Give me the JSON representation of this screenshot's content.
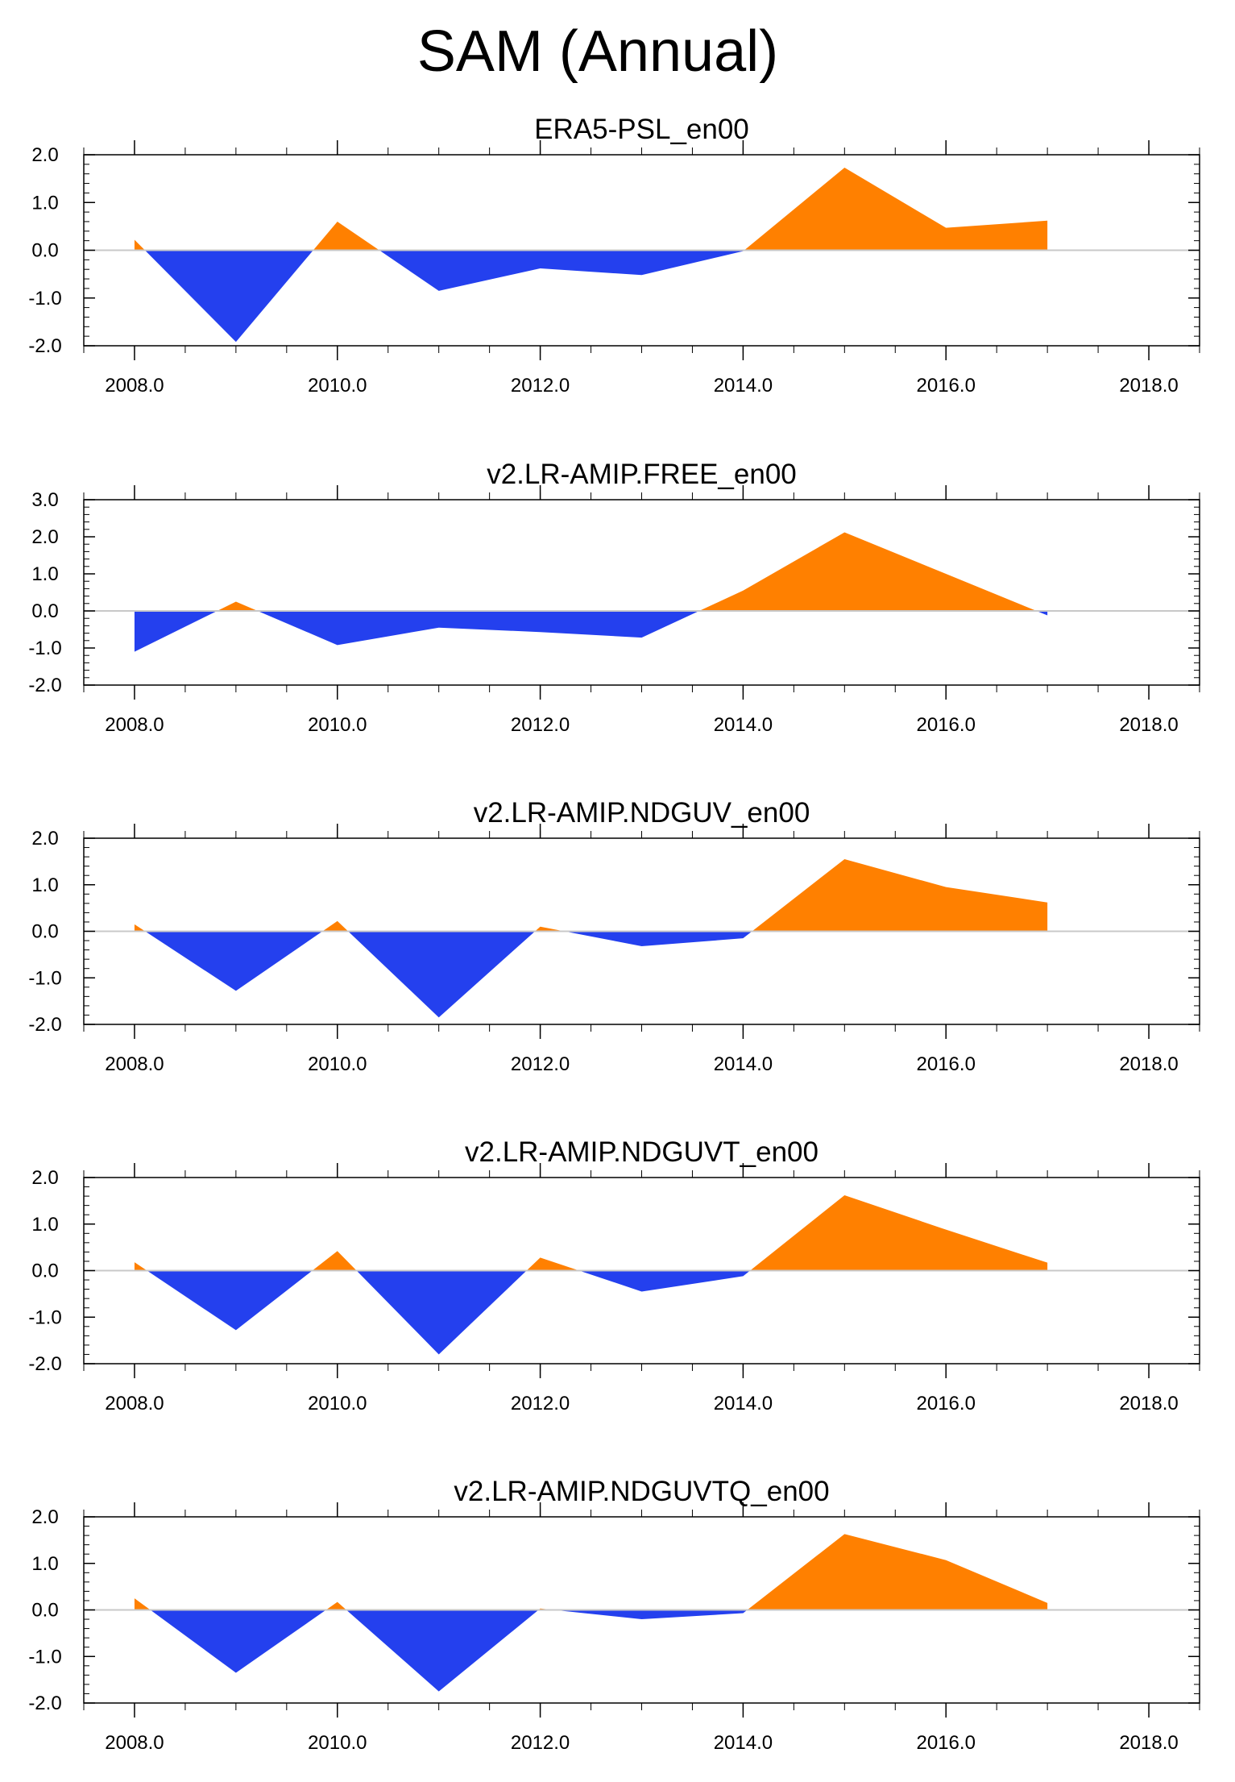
{
  "figure_title": "SAM (Annual)",
  "colors": {
    "positive": "#ff8000",
    "negative": "#2440ee",
    "zero_line": "#c8c8c8",
    "axis": "#000000"
  },
  "chart_data": [
    {
      "type": "area",
      "title": "ERA5-PSL_en00",
      "x": [
        2008,
        2009,
        2010,
        2011,
        2012,
        2013,
        2014,
        2015,
        2016,
        2017
      ],
      "values": [
        0.22,
        -1.92,
        0.6,
        -0.85,
        -0.38,
        -0.52,
        -0.02,
        1.73,
        0.47,
        0.62
      ],
      "xlim": [
        2007.5,
        2018.5
      ],
      "ylim": [
        -2.0,
        2.0
      ],
      "yticks": [
        -2.0,
        -1.0,
        0.0,
        1.0,
        2.0
      ],
      "ytick_labels": [
        "-2.0",
        "-1.0",
        "0.0",
        "1.0",
        "2.0"
      ],
      "xticks": [
        2008,
        2010,
        2012,
        2014,
        2016,
        2018
      ],
      "xtick_labels": [
        "2008.0",
        "2010.0",
        "2012.0",
        "2014.0",
        "2016.0",
        "2018.0"
      ]
    },
    {
      "type": "area",
      "title": "v2.LR-AMIP.FREE_en00",
      "x": [
        2008,
        2009,
        2010,
        2011,
        2012,
        2013,
        2014,
        2015,
        2016,
        2017
      ],
      "values": [
        -1.1,
        0.25,
        -0.92,
        -0.45,
        -0.57,
        -0.72,
        0.55,
        2.12,
        1.0,
        -0.12
      ],
      "xlim": [
        2007.5,
        2018.5
      ],
      "ylim": [
        -2.0,
        3.0
      ],
      "yticks": [
        -2.0,
        -1.0,
        0.0,
        1.0,
        2.0,
        3.0
      ],
      "ytick_labels": [
        "-2.0",
        "-1.0",
        "0.0",
        "1.0",
        "2.0",
        "3.0"
      ],
      "xticks": [
        2008,
        2010,
        2012,
        2014,
        2016,
        2018
      ],
      "xtick_labels": [
        "2008.0",
        "2010.0",
        "2012.0",
        "2014.0",
        "2016.0",
        "2018.0"
      ]
    },
    {
      "type": "area",
      "title": "v2.LR-AMIP.NDGUV_en00",
      "x": [
        2008,
        2009,
        2010,
        2011,
        2012,
        2013,
        2014,
        2015,
        2016,
        2017
      ],
      "values": [
        0.15,
        -1.28,
        0.22,
        -1.85,
        0.1,
        -0.32,
        -0.15,
        1.55,
        0.95,
        0.62
      ],
      "xlim": [
        2007.5,
        2018.5
      ],
      "ylim": [
        -2.0,
        2.0
      ],
      "yticks": [
        -2.0,
        -1.0,
        0.0,
        1.0,
        2.0
      ],
      "ytick_labels": [
        "-2.0",
        "-1.0",
        "0.0",
        "1.0",
        "2.0"
      ],
      "xticks": [
        2008,
        2010,
        2012,
        2014,
        2016,
        2018
      ],
      "xtick_labels": [
        "2008.0",
        "2010.0",
        "2012.0",
        "2014.0",
        "2016.0",
        "2018.0"
      ]
    },
    {
      "type": "area",
      "title": "v2.LR-AMIP.NDGUVT_en00",
      "x": [
        2008,
        2009,
        2010,
        2011,
        2012,
        2013,
        2014,
        2015,
        2016,
        2017
      ],
      "values": [
        0.18,
        -1.28,
        0.42,
        -1.8,
        0.28,
        -0.45,
        -0.12,
        1.62,
        0.88,
        0.17
      ],
      "xlim": [
        2007.5,
        2018.5
      ],
      "ylim": [
        -2.0,
        2.0
      ],
      "yticks": [
        -2.0,
        -1.0,
        0.0,
        1.0,
        2.0
      ],
      "ytick_labels": [
        "-2.0",
        "-1.0",
        "0.0",
        "1.0",
        "2.0"
      ],
      "xticks": [
        2008,
        2010,
        2012,
        2014,
        2016,
        2018
      ],
      "xtick_labels": [
        "2008.0",
        "2010.0",
        "2012.0",
        "2014.0",
        "2016.0",
        "2018.0"
      ]
    },
    {
      "type": "area",
      "title": "v2.LR-AMIP.NDGUVTQ_en00",
      "x": [
        2008,
        2009,
        2010,
        2011,
        2012,
        2013,
        2014,
        2015,
        2016,
        2017
      ],
      "values": [
        0.25,
        -1.35,
        0.17,
        -1.75,
        0.03,
        -0.2,
        -0.07,
        1.63,
        1.07,
        0.15
      ],
      "xlim": [
        2007.5,
        2018.5
      ],
      "ylim": [
        -2.0,
        2.0
      ],
      "yticks": [
        -2.0,
        -1.0,
        0.0,
        1.0,
        2.0
      ],
      "ytick_labels": [
        "-2.0",
        "-1.0",
        "0.0",
        "1.0",
        "2.0"
      ],
      "xticks": [
        2008,
        2010,
        2012,
        2014,
        2016,
        2018
      ],
      "xtick_labels": [
        "2008.0",
        "2010.0",
        "2012.0",
        "2014.0",
        "2016.0",
        "2018.0"
      ]
    }
  ]
}
